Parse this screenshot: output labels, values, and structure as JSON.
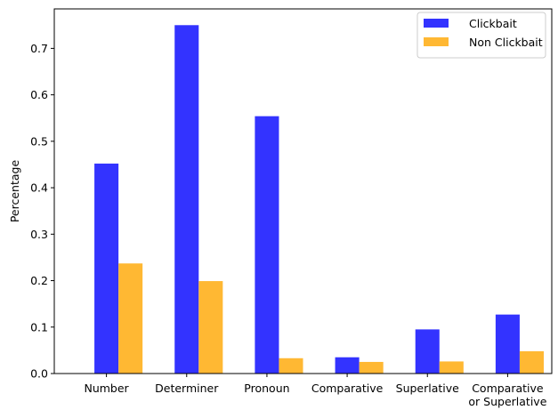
{
  "chart_data": {
    "type": "bar",
    "categories": [
      "Number",
      "Determiner",
      "Pronoun",
      "Comparative",
      "Superlative",
      "Comparative\nor Superlative"
    ],
    "series": [
      {
        "name": "Clickbait",
        "color": "#3333ff",
        "values": [
          0.452,
          0.75,
          0.554,
          0.035,
          0.095,
          0.127
        ]
      },
      {
        "name": "Non Clickbait",
        "color": "#ffb833",
        "values": [
          0.237,
          0.199,
          0.033,
          0.025,
          0.026,
          0.048
        ]
      }
    ],
    "title": "",
    "xlabel": "",
    "ylabel": "Percentage",
    "ylim": [
      0,
      0.785
    ],
    "yticks": [
      0.0,
      0.1,
      0.2,
      0.3,
      0.4,
      0.5,
      0.6,
      0.7
    ],
    "ytick_labels": [
      "0.0",
      "0.1",
      "0.2",
      "0.3",
      "0.4",
      "0.5",
      "0.6",
      "0.7"
    ],
    "legend_position": "top-right",
    "grid": false
  }
}
